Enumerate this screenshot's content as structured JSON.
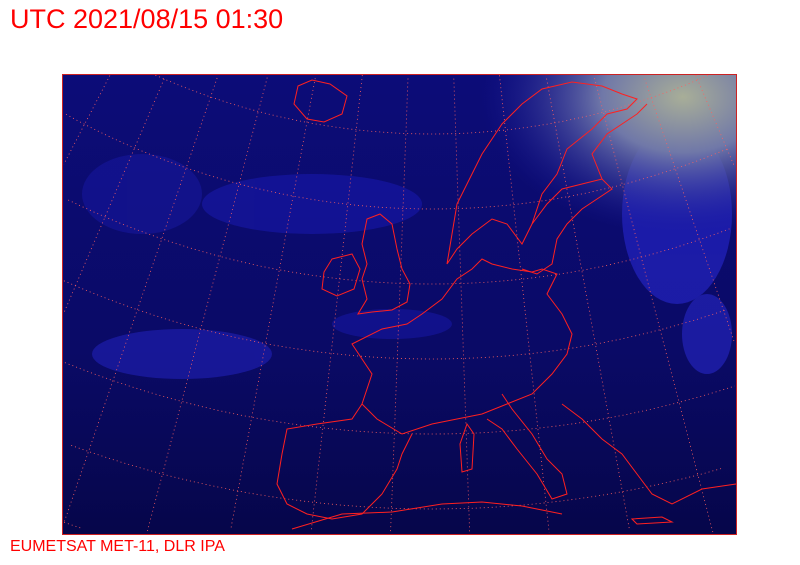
{
  "header": {
    "title": "UTC 2021/08/15 01:30"
  },
  "footer": {
    "credit": "EUMETSAT MET-11, DLR IPA"
  },
  "map": {
    "imagery": "satellite infrared composite",
    "region": "Europe and North Atlantic",
    "colors": {
      "background": "#0a0a6e",
      "cloud_bright": "#2a2ad8",
      "cold_cloud_top": "#9aa08a",
      "coastline": "#ff2020",
      "graticule": "#ff6060",
      "frame": "#cc2222"
    }
  }
}
